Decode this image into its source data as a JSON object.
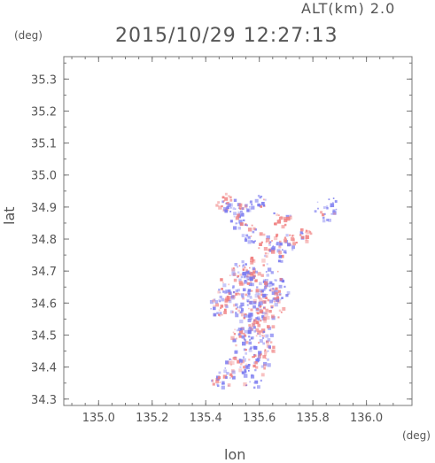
{
  "header": {
    "altitude_text": "ALT(km) 2.0",
    "datetime": "2015/10/29 12:27:13"
  },
  "chart_data": {
    "type": "heatmap",
    "title": "2015/10/29 12:27:13",
    "subtitle": "ALT(km) 2.0",
    "xlabel": "lon",
    "ylabel": "lat",
    "x_unit": "(deg)",
    "y_unit": "(deg)",
    "xlim": [
      134.87,
      136.17
    ],
    "ylim": [
      34.28,
      35.37
    ],
    "x_ticks": [
      "135.0",
      "135.2",
      "135.4",
      "135.6",
      "135.8",
      "136.0"
    ],
    "y_ticks": [
      "34.3",
      "34.4",
      "34.5",
      "34.6",
      "34.7",
      "34.8",
      "34.9",
      "35.0",
      "35.1",
      "35.2",
      "35.3"
    ],
    "grid": false,
    "colors": {
      "positive": "#f08080",
      "negative": "#7a7af0",
      "axis": "#777777"
    },
    "clusters": [
      {
        "lon": 135.47,
        "lat": 34.92,
        "sign": 1,
        "size": 2
      },
      {
        "lon": 135.5,
        "lat": 34.9,
        "sign": -1,
        "size": 2
      },
      {
        "lon": 135.55,
        "lat": 34.91,
        "sign": -1,
        "size": 1
      },
      {
        "lon": 135.6,
        "lat": 34.92,
        "sign": -1,
        "size": 1
      },
      {
        "lon": 135.85,
        "lat": 34.9,
        "sign": -1,
        "size": 3
      },
      {
        "lon": 135.68,
        "lat": 34.87,
        "sign": 1,
        "size": 2
      },
      {
        "lon": 135.52,
        "lat": 34.86,
        "sign": -1,
        "size": 2
      },
      {
        "lon": 135.56,
        "lat": 34.82,
        "sign": -1,
        "size": 2
      },
      {
        "lon": 135.63,
        "lat": 34.79,
        "sign": 1,
        "size": 3
      },
      {
        "lon": 135.7,
        "lat": 34.79,
        "sign": -1,
        "size": 2
      },
      {
        "lon": 135.76,
        "lat": 34.81,
        "sign": 1,
        "size": 2
      },
      {
        "lon": 135.67,
        "lat": 34.76,
        "sign": -1,
        "size": 2
      },
      {
        "lon": 135.53,
        "lat": 34.71,
        "sign": -1,
        "size": 2
      },
      {
        "lon": 135.58,
        "lat": 34.71,
        "sign": 1,
        "size": 3
      },
      {
        "lon": 135.62,
        "lat": 34.68,
        "sign": -1,
        "size": 4
      },
      {
        "lon": 135.5,
        "lat": 34.67,
        "sign": 1,
        "size": 3
      },
      {
        "lon": 135.56,
        "lat": 34.65,
        "sign": -1,
        "size": 4
      },
      {
        "lon": 135.61,
        "lat": 34.63,
        "sign": 1,
        "size": 4
      },
      {
        "lon": 135.66,
        "lat": 34.64,
        "sign": -1,
        "size": 3
      },
      {
        "lon": 135.52,
        "lat": 34.61,
        "sign": 1,
        "size": 3
      },
      {
        "lon": 135.57,
        "lat": 34.6,
        "sign": -1,
        "size": 4
      },
      {
        "lon": 135.64,
        "lat": 34.59,
        "sign": 1,
        "size": 3
      },
      {
        "lon": 135.46,
        "lat": 34.62,
        "sign": -1,
        "size": 2
      },
      {
        "lon": 135.44,
        "lat": 34.59,
        "sign": 1,
        "size": 2
      },
      {
        "lon": 135.55,
        "lat": 34.55,
        "sign": -1,
        "size": 3
      },
      {
        "lon": 135.61,
        "lat": 34.54,
        "sign": 1,
        "size": 3
      },
      {
        "lon": 135.52,
        "lat": 34.5,
        "sign": 1,
        "size": 2
      },
      {
        "lon": 135.58,
        "lat": 34.49,
        "sign": -1,
        "size": 3
      },
      {
        "lon": 135.63,
        "lat": 34.48,
        "sign": 1,
        "size": 2
      },
      {
        "lon": 135.55,
        "lat": 34.44,
        "sign": -1,
        "size": 3
      },
      {
        "lon": 135.6,
        "lat": 34.42,
        "sign": 1,
        "size": 2
      },
      {
        "lon": 135.5,
        "lat": 34.41,
        "sign": 1,
        "size": 2
      },
      {
        "lon": 135.57,
        "lat": 34.38,
        "sign": -1,
        "size": 3
      },
      {
        "lon": 135.47,
        "lat": 34.37,
        "sign": -1,
        "size": 2
      },
      {
        "lon": 135.43,
        "lat": 34.36,
        "sign": 1,
        "size": 1
      }
    ]
  }
}
